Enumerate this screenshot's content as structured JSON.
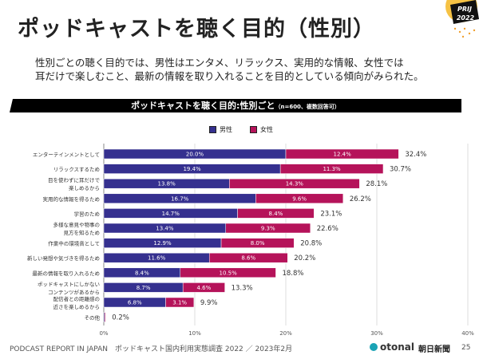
{
  "title": "ポッドキャストを聴く目的（性別）",
  "lead": [
    "性別ごとの聴く目的では、男性はエンタメ、リラックス、実用的な情報、女性では",
    "耳だけで楽しむこと、最新の情報を取り入れることを目的としている傾向がみられた。"
  ],
  "badge": {
    "line1": "PRIJ",
    "line2": "2022"
  },
  "footer": {
    "text": "PODCAST REPORT IN JAPAN　ポッドキャスト国内利用実態調査 2022 ／ 2023年2月",
    "logo1": "otonal",
    "logo2": "朝日新聞",
    "page": "25"
  },
  "colors": {
    "male": "#35308f",
    "female": "#b5135a"
  },
  "chart_data": {
    "type": "bar",
    "stacked": true,
    "orientation": "horizontal",
    "title": "ポッドキャストを聴く目的:性別ごと",
    "subtitle": "（n=600、複数回答可）",
    "xlim": [
      0,
      40
    ],
    "xticks": [
      "0%",
      "10%",
      "20%",
      "30%",
      "40%"
    ],
    "grid": true,
    "legend": "top",
    "categories": [
      "エンターテインメントとして",
      "リラックスするため",
      "目を使わずに耳だけで\n楽しめるから",
      "実用的な情報を得るため",
      "学習のため",
      "多様な意見や物事の\n見方を知るため",
      "作業中の環境音として",
      "新しい発想や気づきを得るため",
      "最新の情報を取り入れるため",
      "ポッドキャストにしかない\nコンテンツがあるから",
      "配信者との距離感の\n近さを楽しめるから",
      "その他"
    ],
    "series": [
      {
        "name": "男性",
        "values": [
          20.0,
          19.4,
          13.8,
          16.7,
          14.7,
          13.4,
          12.9,
          11.6,
          8.4,
          8.7,
          6.8,
          0.1
        ]
      },
      {
        "name": "女性",
        "values": [
          12.4,
          11.3,
          14.3,
          9.6,
          8.4,
          9.3,
          8.0,
          8.6,
          10.5,
          4.6,
          3.1,
          0.1
        ]
      }
    ],
    "totals": [
      "32.4%",
      "30.7%",
      "28.1%",
      "26.2%",
      "23.1%",
      "22.6%",
      "20.8%",
      "20.2%",
      "18.8%",
      "13.3%",
      "9.9%",
      "0.2%"
    ]
  }
}
